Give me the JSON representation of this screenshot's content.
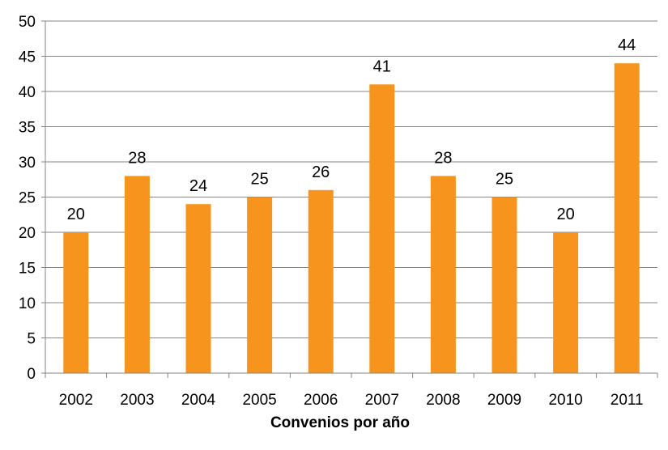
{
  "chart_data": {
    "type": "bar",
    "categories": [
      "2002",
      "2003",
      "2004",
      "2005",
      "2006",
      "2007",
      "2008",
      "2009",
      "2010",
      "2011"
    ],
    "values": [
      20,
      28,
      24,
      25,
      26,
      41,
      28,
      25,
      20,
      44
    ],
    "data_labels": [
      "20",
      "28",
      "24",
      "25",
      "26",
      "41",
      "28",
      "25",
      "20",
      "44"
    ],
    "y_ticks": [
      "0",
      "5",
      "10",
      "15",
      "20",
      "25",
      "30",
      "35",
      "40",
      "45",
      "50"
    ],
    "xlabel": "Convenios por año",
    "ylim": [
      0,
      50
    ],
    "grid": true,
    "legend": "none",
    "bar_color": "#F7941D"
  }
}
